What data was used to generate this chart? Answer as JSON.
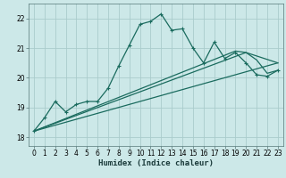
{
  "xlabel": "Humidex (Indice chaleur)",
  "bg_color": "#cce8e8",
  "grid_color": "#aacccc",
  "line_color": "#1a6b5e",
  "xlim": [
    -0.5,
    23.5
  ],
  "ylim": [
    17.7,
    22.5
  ],
  "yticks": [
    18,
    19,
    20,
    21,
    22
  ],
  "xticks": [
    0,
    1,
    2,
    3,
    4,
    5,
    6,
    7,
    8,
    9,
    10,
    11,
    12,
    13,
    14,
    15,
    16,
    17,
    18,
    19,
    20,
    21,
    22,
    23
  ],
  "series": [
    {
      "x": [
        0,
        1,
        2,
        3,
        4,
        5,
        6,
        7,
        8,
        9,
        10,
        11,
        12,
        13,
        14,
        15,
        16,
        17,
        18,
        19,
        20,
        21,
        22,
        23
      ],
      "y": [
        18.2,
        18.65,
        19.2,
        18.85,
        19.1,
        19.2,
        19.2,
        19.65,
        20.4,
        21.1,
        21.8,
        21.9,
        22.15,
        21.6,
        21.65,
        21.0,
        20.5,
        21.2,
        20.65,
        20.85,
        20.5,
        20.1,
        20.05,
        20.25
      ],
      "marker": true,
      "lw": 0.9
    },
    {
      "x": [
        0,
        23
      ],
      "y": [
        18.2,
        20.5
      ],
      "marker": false,
      "lw": 0.9
    },
    {
      "x": [
        0,
        20,
        23
      ],
      "y": [
        18.2,
        20.85,
        20.5
      ],
      "marker": false,
      "lw": 0.9
    },
    {
      "x": [
        0,
        19,
        20,
        21,
        22,
        23
      ],
      "y": [
        18.2,
        20.9,
        20.85,
        20.6,
        20.15,
        20.25
      ],
      "marker": false,
      "lw": 0.9
    }
  ]
}
